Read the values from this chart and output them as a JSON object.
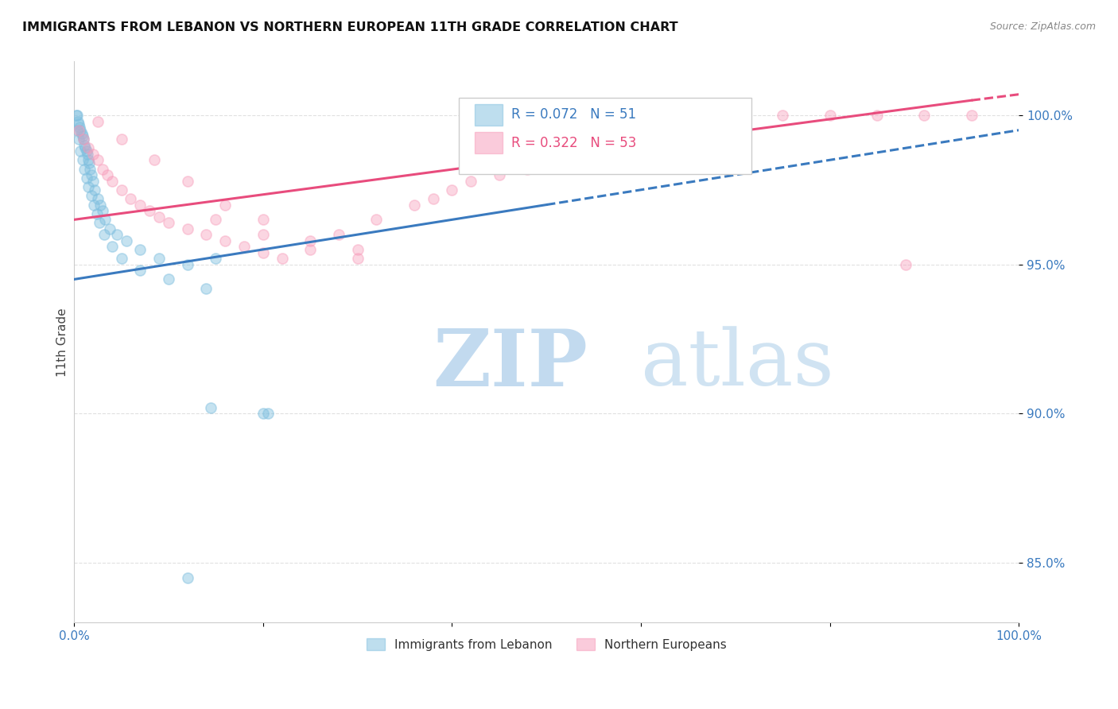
{
  "title": "IMMIGRANTS FROM LEBANON VS NORTHERN EUROPEAN 11TH GRADE CORRELATION CHART",
  "source": "Source: ZipAtlas.com",
  "ylabel": "11th Grade",
  "xlim": [
    0.0,
    100.0
  ],
  "ylim": [
    83.0,
    101.8
  ],
  "ytick_labels": [
    "85.0%",
    "90.0%",
    "95.0%",
    "100.0%"
  ],
  "ytick_values": [
    85.0,
    90.0,
    95.0,
    100.0
  ],
  "legend_blue_label": "Immigrants from Lebanon",
  "legend_pink_label": "Northern Europeans",
  "legend_blue_R": "R = 0.072",
  "legend_blue_N": "N = 51",
  "legend_pink_R": "R = 0.322",
  "legend_pink_N": "N = 53",
  "blue_color": "#7fbfdf",
  "pink_color": "#f799b8",
  "blue_trend_color": "#3a7abf",
  "pink_trend_color": "#e84c7d",
  "watermark_zip_color": "#b8d4ed",
  "watermark_atlas_color": "#c8dff0",
  "blue_scatter_x": [
    0.2,
    0.3,
    0.4,
    0.5,
    0.6,
    0.7,
    0.8,
    0.9,
    1.0,
    1.1,
    1.2,
    1.3,
    1.4,
    1.5,
    1.6,
    1.7,
    1.8,
    2.0,
    2.2,
    2.5,
    2.8,
    3.0,
    3.3,
    3.8,
    4.5,
    5.5,
    7.0,
    9.0,
    12.0,
    15.0,
    0.3,
    0.5,
    0.7,
    0.9,
    1.1,
    1.3,
    1.5,
    1.8,
    2.1,
    2.4,
    2.7,
    3.2,
    4.0,
    5.0,
    7.0,
    10.0,
    14.0,
    20.0,
    14.5,
    20.5,
    12.0
  ],
  "blue_scatter_y": [
    100.0,
    100.0,
    99.8,
    99.7,
    99.6,
    99.5,
    99.4,
    99.3,
    99.2,
    99.0,
    98.9,
    98.8,
    98.7,
    98.5,
    98.4,
    98.2,
    98.0,
    97.8,
    97.5,
    97.2,
    97.0,
    96.8,
    96.5,
    96.2,
    96.0,
    95.8,
    95.5,
    95.2,
    95.0,
    95.2,
    99.5,
    99.2,
    98.8,
    98.5,
    98.2,
    97.9,
    97.6,
    97.3,
    97.0,
    96.7,
    96.4,
    96.0,
    95.6,
    95.2,
    94.8,
    94.5,
    94.2,
    90.0,
    90.2,
    90.0,
    84.5
  ],
  "pink_scatter_x": [
    0.5,
    1.0,
    1.5,
    2.0,
    2.5,
    3.0,
    3.5,
    4.0,
    5.0,
    6.0,
    7.0,
    8.0,
    9.0,
    10.0,
    12.0,
    14.0,
    16.0,
    18.0,
    20.0,
    22.0,
    25.0,
    28.0,
    32.0,
    36.0,
    40.0,
    45.0,
    50.0,
    55.0,
    60.0,
    65.0,
    70.0,
    75.0,
    80.0,
    85.0,
    90.0,
    95.0,
    2.5,
    5.0,
    8.5,
    12.0,
    16.0,
    20.0,
    25.0,
    30.0,
    15.0,
    20.0,
    30.0,
    38.0,
    42.0,
    48.0,
    55.0,
    62.0,
    88.0
  ],
  "pink_scatter_y": [
    99.5,
    99.2,
    98.9,
    98.7,
    98.5,
    98.2,
    98.0,
    97.8,
    97.5,
    97.2,
    97.0,
    96.8,
    96.6,
    96.4,
    96.2,
    96.0,
    95.8,
    95.6,
    95.4,
    95.2,
    95.5,
    96.0,
    96.5,
    97.0,
    97.5,
    98.0,
    98.5,
    99.0,
    99.3,
    99.5,
    99.8,
    100.0,
    100.0,
    100.0,
    100.0,
    100.0,
    99.8,
    99.2,
    98.5,
    97.8,
    97.0,
    96.5,
    95.8,
    95.2,
    96.5,
    96.0,
    95.5,
    97.2,
    97.8,
    98.2,
    98.8,
    99.2,
    95.0
  ],
  "blue_trend_x0": 0.0,
  "blue_trend_y0": 94.5,
  "blue_trend_x1": 50.0,
  "blue_trend_y1": 97.0,
  "blue_dash_x0": 50.0,
  "blue_dash_y0": 97.0,
  "blue_dash_x1": 100.0,
  "blue_dash_y1": 99.5,
  "pink_trend_x0": 0.0,
  "pink_trend_y0": 96.5,
  "pink_trend_x1": 95.0,
  "pink_trend_y1": 100.5,
  "pink_dash_x0": 95.0,
  "pink_dash_y0": 100.5,
  "pink_dash_x1": 100.0,
  "pink_dash_y1": 100.7
}
